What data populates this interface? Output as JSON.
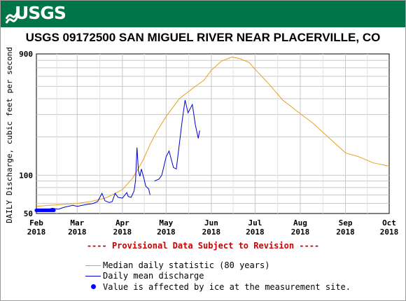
{
  "header": {
    "logo_text": "USGS",
    "banner_color": "#00754a"
  },
  "chart_data": {
    "type": "line",
    "title": "USGS 09172500 SAN MIGUEL RIVER NEAR PLACERVILLE, CO",
    "xlabel": "",
    "ylabel": "DAILY Discharge, cubic feet per second",
    "y_scale": "log",
    "ylim": [
      50,
      900
    ],
    "xlim": [
      "2018-02-01",
      "2018-10-01"
    ],
    "y_ticks": [
      50,
      100,
      900
    ],
    "y_tick_labels": [
      "50",
      "100",
      "900"
    ],
    "x_tick_labels": [
      {
        "date": "2018-02-01",
        "month": "Feb",
        "year": "2018"
      },
      {
        "date": "2018-03-01",
        "month": "Mar",
        "year": "2018"
      },
      {
        "date": "2018-04-01",
        "month": "Apr",
        "year": "2018"
      },
      {
        "date": "2018-05-01",
        "month": "May",
        "year": "2018"
      },
      {
        "date": "2018-06-01",
        "month": "Jun",
        "year": "2018"
      },
      {
        "date": "2018-07-01",
        "month": "Jul",
        "year": "2018"
      },
      {
        "date": "2018-08-01",
        "month": "Aug",
        "year": "2018"
      },
      {
        "date": "2018-09-01",
        "month": "Sep",
        "year": "2018"
      },
      {
        "date": "2018-10-01",
        "month": "Oct",
        "year": "2018"
      }
    ],
    "grid": true,
    "legend_position": "bottom",
    "series": [
      {
        "name": "Median daily statistic (80 years)",
        "color": "#e8a020",
        "points": [
          [
            "2018-02-01",
            57
          ],
          [
            "2018-02-10",
            58
          ],
          [
            "2018-02-20",
            59
          ],
          [
            "2018-03-01",
            60
          ],
          [
            "2018-03-10",
            62
          ],
          [
            "2018-03-20",
            66
          ],
          [
            "2018-03-25",
            70
          ],
          [
            "2018-04-01",
            77
          ],
          [
            "2018-04-08",
            95
          ],
          [
            "2018-04-15",
            130
          ],
          [
            "2018-04-20",
            175
          ],
          [
            "2018-04-25",
            225
          ],
          [
            "2018-05-01",
            290
          ],
          [
            "2018-05-10",
            400
          ],
          [
            "2018-05-20",
            490
          ],
          [
            "2018-05-27",
            560
          ],
          [
            "2018-06-01",
            670
          ],
          [
            "2018-06-08",
            790
          ],
          [
            "2018-06-15",
            850
          ],
          [
            "2018-06-20",
            830
          ],
          [
            "2018-06-27",
            770
          ],
          [
            "2018-07-01",
            680
          ],
          [
            "2018-07-10",
            530
          ],
          [
            "2018-07-20",
            390
          ],
          [
            "2018-08-01",
            305
          ],
          [
            "2018-08-10",
            255
          ],
          [
            "2018-08-20",
            200
          ],
          [
            "2018-09-01",
            150
          ],
          [
            "2018-09-10",
            140
          ],
          [
            "2018-09-20",
            125
          ],
          [
            "2018-10-01",
            118
          ]
        ]
      },
      {
        "name": "Daily mean discharge",
        "color": "#0000cc",
        "points": [
          [
            "2018-02-01",
            53
          ],
          [
            "2018-02-06",
            53
          ],
          [
            "2018-02-12",
            55
          ],
          [
            "2018-02-16",
            54
          ],
          [
            "2018-02-20",
            56
          ],
          [
            "2018-02-26",
            58
          ],
          [
            "2018-03-01",
            57
          ],
          [
            "2018-03-08",
            59
          ],
          [
            "2018-03-12",
            60
          ],
          [
            "2018-03-15",
            62
          ],
          [
            "2018-03-18",
            72
          ],
          [
            "2018-03-20",
            63
          ],
          [
            "2018-03-23",
            61
          ],
          [
            "2018-03-25",
            62
          ],
          [
            "2018-03-27",
            72
          ],
          [
            "2018-03-29",
            67
          ],
          [
            "2018-04-01",
            66
          ],
          [
            "2018-04-04",
            73
          ],
          [
            "2018-04-05",
            68
          ],
          [
            "2018-04-07",
            67
          ],
          [
            "2018-04-09",
            75
          ],
          [
            "2018-04-10",
            90
          ],
          [
            "2018-04-11",
            165
          ],
          [
            "2018-04-12",
            108
          ],
          [
            "2018-04-13",
            98
          ],
          [
            "2018-04-14",
            112
          ],
          [
            "2018-04-16",
            92
          ],
          [
            "2018-04-17",
            82
          ],
          [
            "2018-04-19",
            78
          ],
          [
            "2018-04-20",
            70
          ],
          [
            "2018-04-22",
            null
          ],
          [
            "2018-04-23",
            90
          ],
          [
            "2018-04-26",
            93
          ],
          [
            "2018-04-28",
            100
          ],
          [
            "2018-05-01",
            140
          ],
          [
            "2018-05-03",
            155
          ],
          [
            "2018-05-06",
            115
          ],
          [
            "2018-05-08",
            112
          ],
          [
            "2018-05-12",
            270
          ],
          [
            "2018-05-14",
            390
          ],
          [
            "2018-05-16",
            310
          ],
          [
            "2018-05-19",
            360
          ],
          [
            "2018-05-21",
            250
          ],
          [
            "2018-05-23",
            195
          ],
          [
            "2018-05-24",
            225
          ]
        ]
      }
    ],
    "ice_marker": {
      "name": "Value is affected by ice at the measurement site.",
      "color": "#0000ff",
      "dates": [
        "2018-02-01",
        "2018-02-02",
        "2018-02-03",
        "2018-02-04",
        "2018-02-05",
        "2018-02-06",
        "2018-02-07",
        "2018-02-08",
        "2018-02-09",
        "2018-02-10",
        "2018-02-11",
        "2018-02-12",
        "2018-02-13"
      ],
      "value": 53
    }
  },
  "footer": {
    "provisional_text": "---- Provisional Data Subject to Revision ----"
  }
}
